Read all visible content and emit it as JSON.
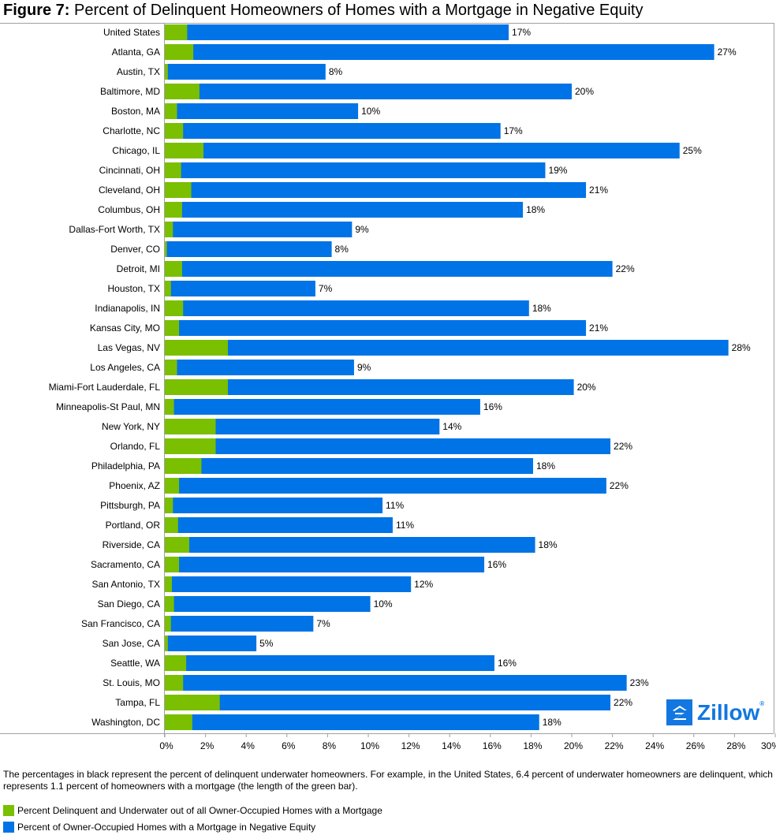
{
  "title": {
    "prefix": "Figure 7:",
    "text": "Percent of Delinquent Homeowners of Homes with a Mortgage in Negative Equity"
  },
  "colors": {
    "green": "#7abf00",
    "blue": "#0073e6",
    "axis": "#a0a0a0",
    "logo": "#1277e1"
  },
  "logo": {
    "name": "Zillow",
    "registered": "®"
  },
  "note": "The percentages in black represent the percent of delinquent underwater homeowners. For example, in the United States, 6.4 percent of underwater homeowners are delinquent, which represents 1.1 percent of homeowners with a mortgage (the length of the green bar).",
  "legend": [
    {
      "label": "Percent Delinquent and Underwater out of all Owner-Occupied Homes with a Mortgage",
      "color": "#7abf00"
    },
    {
      "label": "Percent of Owner-Occupied Homes with a Mortgage in Negative Equity",
      "color": "#0073e6"
    }
  ],
  "chart_data": {
    "type": "bar",
    "orientation": "horizontal",
    "stacked": "overlay",
    "title": "Figure 7: Percent of Delinquent Homeowners of Homes with a Mortgage in Negative Equity",
    "xlabel": "",
    "ylabel": "",
    "xlim": [
      0,
      30
    ],
    "xticks": [
      "0%",
      "2%",
      "4%",
      "6%",
      "8%",
      "10%",
      "12%",
      "14%",
      "16%",
      "18%",
      "20%",
      "22%",
      "24%",
      "26%",
      "28%",
      "30%"
    ],
    "grid": false,
    "legend_position": "bottom",
    "categories": [
      "United States",
      "Atlanta, GA",
      "Austin, TX",
      "Baltimore, MD",
      "Boston, MA",
      "Charlotte, NC",
      "Chicago, IL",
      "Cincinnati, OH",
      "Cleveland, OH",
      "Columbus, OH",
      "Dallas-Fort Worth, TX",
      "Denver, CO",
      "Detroit, MI",
      "Houston, TX",
      "Indianapolis, IN",
      "Kansas City, MO",
      "Las Vegas, NV",
      "Los Angeles, CA",
      "Miami-Fort Lauderdale, FL",
      "Minneapolis-St Paul, MN",
      "New York, NY",
      "Orlando, FL",
      "Philadelphia, PA",
      "Phoenix, AZ",
      "Pittsburgh, PA",
      "Portland, OR",
      "Riverside, CA",
      "Sacramento, CA",
      "San Antonio, TX",
      "San Diego, CA",
      "San Francisco, CA",
      "San Jose, CA",
      "Seattle, WA",
      "St. Louis, MO",
      "Tampa, FL",
      "Washington, DC"
    ],
    "series": [
      {
        "name": "Percent of Owner-Occupied Homes with a Mortgage in Negative Equity",
        "color": "#0073e6",
        "values": [
          16.9,
          27.0,
          7.9,
          20.0,
          9.5,
          16.5,
          25.3,
          18.7,
          20.7,
          17.6,
          9.2,
          8.2,
          22.0,
          7.4,
          17.9,
          20.7,
          27.7,
          9.3,
          20.1,
          15.5,
          13.5,
          21.9,
          18.1,
          21.7,
          10.7,
          11.2,
          18.2,
          15.7,
          12.1,
          10.1,
          7.3,
          4.5,
          16.2,
          22.7,
          21.9,
          18.4
        ]
      },
      {
        "name": "Percent Delinquent and Underwater out of all Owner-Occupied Homes with a Mortgage",
        "color": "#7abf00",
        "values": [
          1.1,
          1.4,
          0.15,
          1.7,
          0.6,
          0.9,
          1.9,
          0.8,
          1.3,
          0.85,
          0.4,
          0.1,
          0.85,
          0.3,
          0.9,
          0.7,
          3.1,
          0.6,
          3.1,
          0.45,
          2.5,
          2.5,
          1.8,
          0.7,
          0.4,
          0.65,
          1.2,
          0.7,
          0.35,
          0.45,
          0.3,
          0.15,
          1.05,
          0.9,
          2.7,
          1.35
        ]
      }
    ],
    "data_labels": [
      "17%",
      "27%",
      "8%",
      "20%",
      "10%",
      "17%",
      "25%",
      "19%",
      "21%",
      "18%",
      "9%",
      "8%",
      "22%",
      "7%",
      "18%",
      "21%",
      "28%",
      "9%",
      "20%",
      "16%",
      "14%",
      "22%",
      "18%",
      "22%",
      "11%",
      "11%",
      "18%",
      "16%",
      "12%",
      "10%",
      "7%",
      "5%",
      "16%",
      "23%",
      "22%",
      "18%"
    ]
  }
}
